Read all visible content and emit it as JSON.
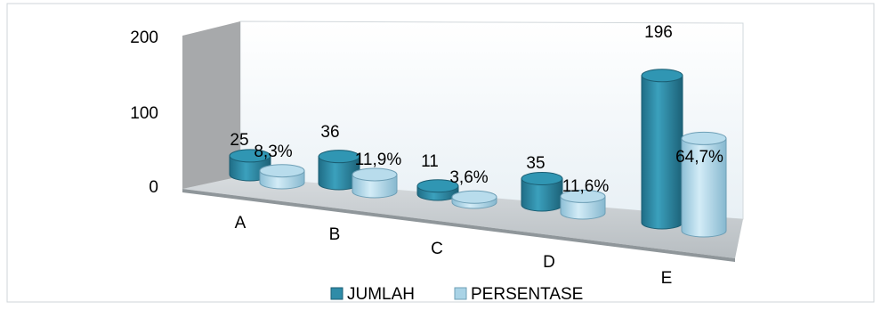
{
  "chart_data": {
    "type": "bar",
    "style": "3d-cylinder",
    "categories": [
      "A",
      "B",
      "C",
      "D",
      "E"
    ],
    "series": [
      {
        "name": "JUMLAH",
        "values": [
          25,
          36,
          11,
          35,
          196
        ],
        "labels": [
          "25",
          "36",
          "11",
          "35",
          "196"
        ],
        "color": "#2f8ca8"
      },
      {
        "name": "PERSENTASE",
        "values": [
          8.3,
          11.9,
          3.6,
          11.6,
          64.7
        ],
        "labels": [
          "8,3%",
          "11,9%",
          "3,6%",
          "11,6%",
          "64,7%"
        ],
        "color": "#a9d3e6"
      }
    ],
    "y_ticks": [
      "0",
      "100",
      "200"
    ],
    "ylim": [
      0,
      200
    ],
    "grid": false,
    "legend": "bottom",
    "colors": {
      "floor": "#c2c8cc",
      "wall_left": "#a7a9ab",
      "wall_back": "#f4f8fb"
    }
  }
}
